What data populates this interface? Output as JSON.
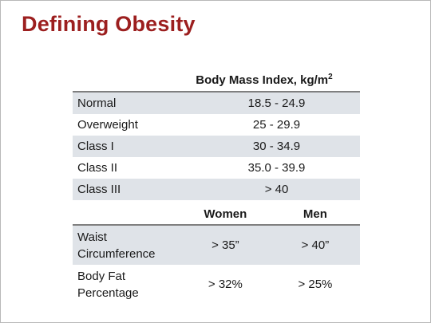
{
  "title": "Defining Obesity",
  "bmi_table": {
    "header": "Body Mass Index, kg/m",
    "header_sup": "2",
    "rows": [
      {
        "label": "Normal",
        "value": "18.5 - 24.9"
      },
      {
        "label": "Overweight",
        "value": "25 - 29.9"
      },
      {
        "label": "Class I",
        "value": "30 - 34.9"
      },
      {
        "label": "Class II",
        "value": "35.0 - 39.9"
      },
      {
        "label": "Class III",
        "value": "> 40"
      }
    ]
  },
  "measure_table": {
    "headers": [
      "Women",
      "Men"
    ],
    "rows": [
      {
        "label_line1": "Waist",
        "label_line2": "Circumference",
        "women": "> 35”",
        "men": "> 40”"
      },
      {
        "label_line1": "Body Fat",
        "label_line2": "Percentage",
        "women": "> 32%",
        "men": "> 25%"
      }
    ]
  }
}
